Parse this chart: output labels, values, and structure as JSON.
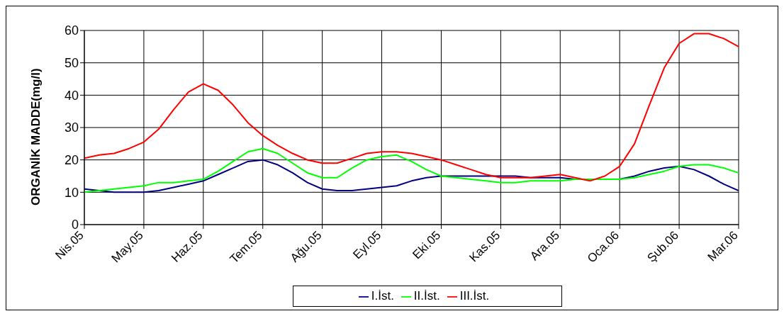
{
  "chart_data": {
    "type": "line",
    "ylabel": "ORGANİK MADDE(mg/l)",
    "categories": [
      "Nis.05",
      null,
      null,
      null,
      "May.05",
      null,
      null,
      null,
      "Haz.05",
      null,
      null,
      null,
      "Tem.05",
      null,
      null,
      null,
      "Ağu.05",
      null,
      null,
      null,
      "Eyl.05",
      null,
      null,
      null,
      "Eki.05",
      null,
      null,
      null,
      "Kas.05",
      null,
      null,
      null,
      "Ara.05",
      null,
      null,
      null,
      "Oca.06",
      null,
      null,
      null,
      "Şub.06",
      null,
      null,
      null,
      "Mar.06"
    ],
    "series": [
      {
        "name": "I.İst.",
        "color": "#000080",
        "values": [
          11,
          10.5,
          10,
          10,
          10,
          10.5,
          11.5,
          12.5,
          13.5,
          15.5,
          17.5,
          19.5,
          20,
          18.5,
          16,
          13,
          11,
          10.5,
          10.5,
          11,
          11.5,
          12,
          13.5,
          14.5,
          15,
          15,
          15,
          15,
          15,
          15,
          14.5,
          14.5,
          14.5,
          14,
          14,
          14,
          14,
          15,
          16.5,
          17.5,
          18,
          17,
          15,
          12.5,
          10.5
        ]
      },
      {
        "name": "II.İst.",
        "color": "#00ff00",
        "values": [
          10,
          10.5,
          11,
          11.5,
          12,
          13,
          13,
          13.5,
          14,
          16.5,
          19.5,
          22.5,
          23.5,
          22,
          19,
          16,
          14.5,
          14.5,
          17.5,
          20,
          21,
          21.5,
          19.5,
          17,
          15,
          14.5,
          14,
          13.5,
          13,
          13,
          13.5,
          13.5,
          13.5,
          14,
          14,
          14,
          14,
          14.5,
          15.5,
          16.5,
          18,
          18.5,
          18.5,
          17.5,
          16
        ]
      },
      {
        "name": "III.İst.",
        "color": "#ff0000",
        "values": [
          20.5,
          21.5,
          22,
          23.5,
          25.5,
          29.5,
          35.5,
          41,
          43.5,
          41.5,
          37,
          31.5,
          27.5,
          24.5,
          22,
          20,
          19,
          19,
          20.5,
          22,
          22.5,
          22.5,
          22,
          21,
          20,
          18.5,
          17,
          15.5,
          14.5,
          14.5,
          14.5,
          15,
          15.5,
          14.5,
          13.5,
          15,
          18,
          25,
          37,
          48.5,
          56,
          59,
          59,
          57.5,
          55
        ]
      }
    ],
    "ylim": [
      0,
      60
    ],
    "yticks": [
      0,
      10,
      20,
      30,
      40,
      50,
      60
    ],
    "grid": true,
    "legend": "bottom",
    "marker": "none",
    "line_style": "solid"
  }
}
